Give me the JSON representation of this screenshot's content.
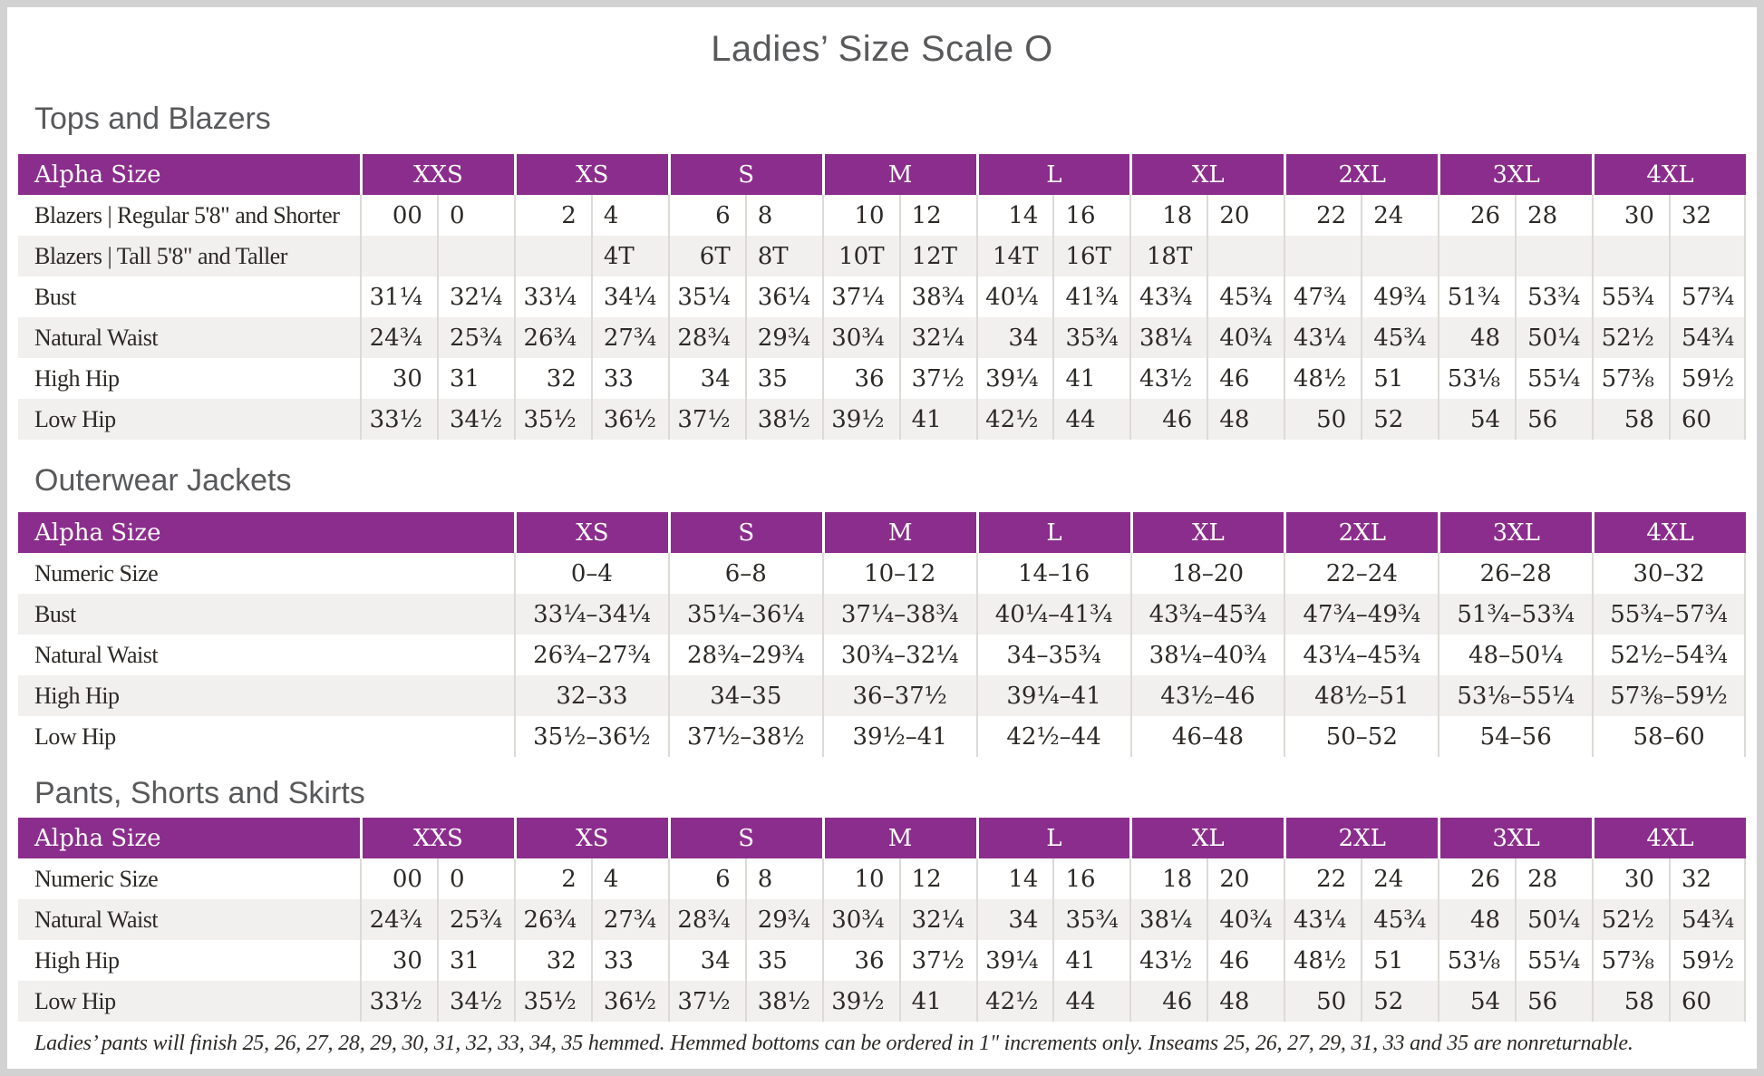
{
  "page": {
    "title": "Ladies’ Size Scale O",
    "footnote": "Ladies’ pants will finish 25, 26, 27, 28, 29, 30, 31, 32, 33, 34, 35 hemmed. Hemmed bottoms can be ordered in 1\" increments only. Inseams 25, 26, 27, 29, 31, 33 and 35 are nonreturnable."
  },
  "colors": {
    "header_purple": "#8b2d8c",
    "alt_row_gray": "#f1f0ee",
    "heading_gray": "#58595b",
    "table_text": "#2c2926",
    "divider": "#dddad6",
    "page_border": "#d2d2d2"
  },
  "tables": [
    {
      "heading": "Tops and Blazers",
      "type": "paired",
      "header_label": "Alpha Size",
      "sizes": [
        "XXS",
        "XS",
        "S",
        "M",
        "L",
        "XL",
        "2XL",
        "3XL",
        "4XL"
      ],
      "rows": [
        {
          "label": "Blazers | Regular 5'8\" and Shorter",
          "values": [
            "00",
            "0",
            "2",
            "4",
            "6",
            "8",
            "10",
            "12",
            "14",
            "16",
            "18",
            "20",
            "22",
            "24",
            "26",
            "28",
            "30",
            "32"
          ]
        },
        {
          "label": "Blazers | Tall 5'8\" and Taller",
          "values": [
            "",
            "",
            "",
            "4T",
            "6T",
            "8T",
            "10T",
            "12T",
            "14T",
            "16T",
            "18T",
            "",
            "",
            "",
            "",
            "",
            "",
            ""
          ]
        },
        {
          "label": "Bust",
          "values": [
            "31¼",
            "32¼",
            "33¼",
            "34¼",
            "35¼",
            "36¼",
            "37¼",
            "38¾",
            "40¼",
            "41¾",
            "43¾",
            "45¾",
            "47¾",
            "49¾",
            "51¾",
            "53¾",
            "55¾",
            "57¾"
          ]
        },
        {
          "label": "Natural Waist",
          "values": [
            "24¾",
            "25¾",
            "26¾",
            "27¾",
            "28¾",
            "29¾",
            "30¾",
            "32¼",
            "34",
            "35¾",
            "38¼",
            "40¾",
            "43¼",
            "45¾",
            "48",
            "50¼",
            "52½",
            "54¾"
          ]
        },
        {
          "label": "High Hip",
          "values": [
            "30",
            "31",
            "32",
            "33",
            "34",
            "35",
            "36",
            "37½",
            "39¼",
            "41",
            "43½",
            "46",
            "48½",
            "51",
            "53⅛",
            "55¼",
            "57⅜",
            "59½"
          ]
        },
        {
          "label": "Low Hip",
          "values": [
            "33½",
            "34½",
            "35½",
            "36½",
            "37½",
            "38½",
            "39½",
            "41",
            "42½",
            "44",
            "46",
            "48",
            "50",
            "52",
            "54",
            "56",
            "58",
            "60"
          ]
        }
      ]
    },
    {
      "heading": "Outerwear Jackets",
      "type": "range",
      "header_label": "Alpha Size",
      "sizes": [
        "XS",
        "S",
        "M",
        "L",
        "XL",
        "2XL",
        "3XL",
        "4XL"
      ],
      "rows": [
        {
          "label": "Numeric Size",
          "values": [
            "0–4",
            "6–8",
            "10–12",
            "14–16",
            "18–20",
            "22–24",
            "26–28",
            "30–32"
          ]
        },
        {
          "label": "Bust",
          "values": [
            "33¼–34¼",
            "35¼–36¼",
            "37¼–38¾",
            "40¼–41¾",
            "43¾–45¾",
            "47¾–49¾",
            "51¾–53¾",
            "55¾–57¾"
          ]
        },
        {
          "label": "Natural Waist",
          "values": [
            "26¾–27¾",
            "28¾–29¾",
            "30¾–32¼",
            "34–35¾",
            "38¼–40¾",
            "43¼–45¾",
            "48–50¼",
            "52½–54¾"
          ]
        },
        {
          "label": "High Hip",
          "values": [
            "32–33",
            "34–35",
            "36–37½",
            "39¼–41",
            "43½–46",
            "48½–51",
            "53⅛–55¼",
            "57⅜–59½"
          ]
        },
        {
          "label": "Low Hip",
          "values": [
            "35½–36½",
            "37½–38½",
            "39½–41",
            "42½–44",
            "46–48",
            "50–52",
            "54–56",
            "58–60"
          ]
        }
      ]
    },
    {
      "heading": "Pants, Shorts and Skirts",
      "type": "paired",
      "header_label": "Alpha Size",
      "sizes": [
        "XXS",
        "XS",
        "S",
        "M",
        "L",
        "XL",
        "2XL",
        "3XL",
        "4XL"
      ],
      "rows": [
        {
          "label": "Numeric Size",
          "values": [
            "00",
            "0",
            "2",
            "4",
            "6",
            "8",
            "10",
            "12",
            "14",
            "16",
            "18",
            "20",
            "22",
            "24",
            "26",
            "28",
            "30",
            "32"
          ]
        },
        {
          "label": "Natural Waist",
          "values": [
            "24¾",
            "25¾",
            "26¾",
            "27¾",
            "28¾",
            "29¾",
            "30¾",
            "32¼",
            "34",
            "35¾",
            "38¼",
            "40¾",
            "43¼",
            "45¾",
            "48",
            "50¼",
            "52½",
            "54¾"
          ]
        },
        {
          "label": "High Hip",
          "values": [
            "30",
            "31",
            "32",
            "33",
            "34",
            "35",
            "36",
            "37½",
            "39¼",
            "41",
            "43½",
            "46",
            "48½",
            "51",
            "53⅛",
            "55¼",
            "57⅜",
            "59½"
          ]
        },
        {
          "label": "Low Hip",
          "values": [
            "33½",
            "34½",
            "35½",
            "36½",
            "37½",
            "38½",
            "39½",
            "41",
            "42½",
            "44",
            "46",
            "48",
            "50",
            "52",
            "54",
            "56",
            "58",
            "60"
          ]
        }
      ]
    }
  ]
}
